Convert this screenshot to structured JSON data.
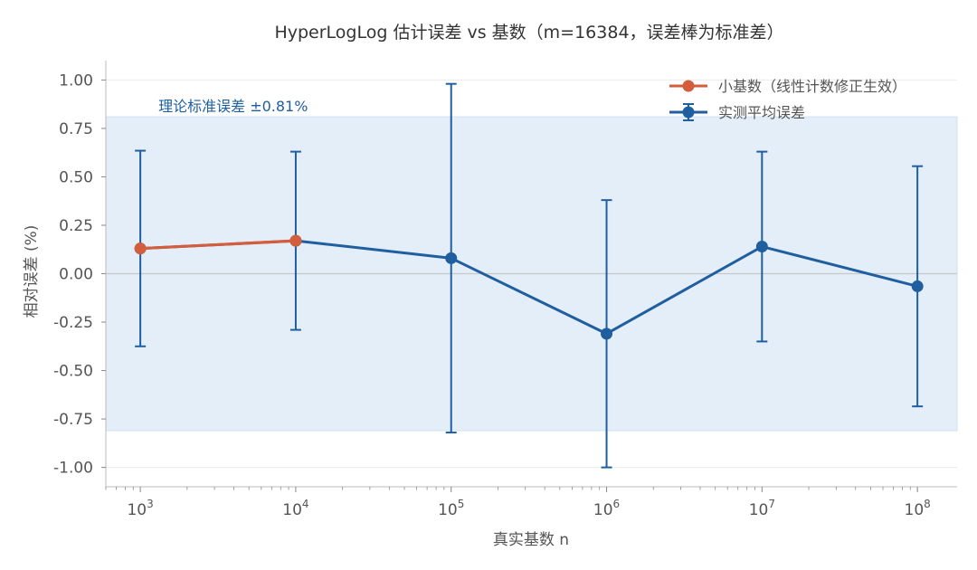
{
  "chart_data": {
    "type": "line",
    "title": "HyperLogLog 估计误差 vs 基数（m=16384，误差棒为标准差）",
    "xlabel": "真实基数 n",
    "ylabel": "相对误差 (%)",
    "x_scale": "log",
    "xlim": [
      600,
      180000000
    ],
    "ylim": [
      -1.1,
      1.1
    ],
    "x_ticks": [
      {
        "value": 1000,
        "base": "10",
        "exp": "3"
      },
      {
        "value": 10000,
        "base": "10",
        "exp": "4"
      },
      {
        "value": 100000,
        "base": "10",
        "exp": "5"
      },
      {
        "value": 1000000,
        "base": "10",
        "exp": "6"
      },
      {
        "value": 10000000,
        "base": "10",
        "exp": "7"
      },
      {
        "value": 100000000,
        "base": "10",
        "exp": "8"
      }
    ],
    "y_ticks": [
      {
        "value": 1.0,
        "label": "1.00"
      },
      {
        "value": 0.75,
        "label": "0.75"
      },
      {
        "value": 0.5,
        "label": "0.50"
      },
      {
        "value": 0.25,
        "label": "0.25"
      },
      {
        "value": 0.0,
        "label": "0.00"
      },
      {
        "value": -0.25,
        "label": "-0.25"
      },
      {
        "value": -0.5,
        "label": "-0.50"
      },
      {
        "value": -0.75,
        "label": "-0.75"
      },
      {
        "value": -1.0,
        "label": "-1.00"
      }
    ],
    "grid": "horizontal",
    "reference_band": {
      "low": -0.81,
      "high": 0.81,
      "label": "理论标准误差 ±0.81%",
      "color": "#e4eef9"
    },
    "zero_line": 0,
    "series": [
      {
        "name": "实测平均误差",
        "color": "#1f5fa0",
        "x": [
          1000,
          10000,
          100000,
          1000000,
          10000000,
          100000000
        ],
        "y": [
          0.13,
          0.17,
          0.08,
          -0.31,
          0.14,
          -0.065
        ],
        "err": [
          0.505,
          0.46,
          0.9,
          0.69,
          0.49,
          0.62
        ]
      },
      {
        "name": "小基数（线性计数修正生效）",
        "color": "#d45d3c",
        "x": [
          1000,
          10000
        ],
        "y": [
          0.13,
          0.17
        ]
      }
    ],
    "legend": {
      "position": "top-right"
    }
  }
}
